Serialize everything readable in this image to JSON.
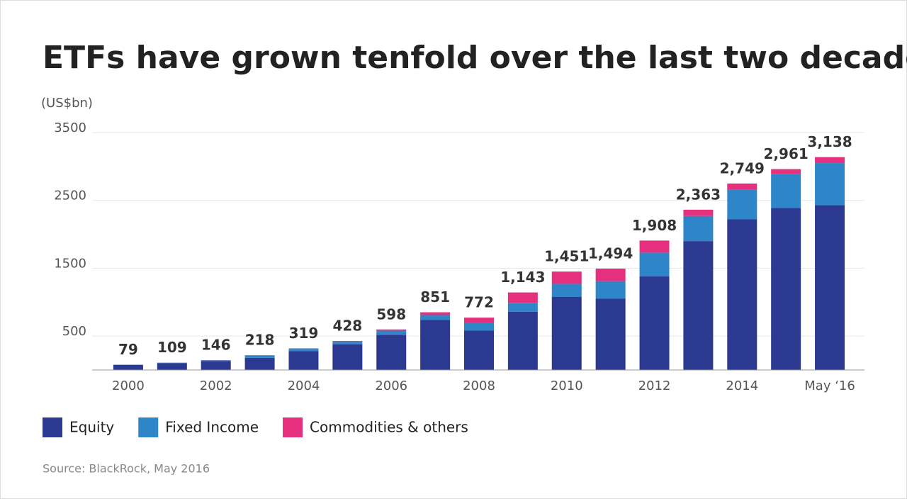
{
  "chart_data": {
    "type": "stacked_bar",
    "title": "ETFs have grown tenfold over the last two decades",
    "y_label": "(US$bn)",
    "source": "Source: BlackRock, May 2016",
    "categories": [
      "2000",
      null,
      "2002",
      null,
      "2004",
      null,
      "2006",
      null,
      "2008",
      null,
      "2010",
      null,
      "2012",
      null,
      "2014",
      null,
      "May ‘16"
    ],
    "series": [
      {
        "name": "Equity",
        "color": "#2b3990",
        "values": [
          74,
          102,
          132,
          180,
          280,
          380,
          520,
          740,
          580,
          860,
          1080,
          1050,
          1380,
          1900,
          2220,
          2390,
          2430
        ]
      },
      {
        "name": "Fixed Income",
        "color": "#2e86c9",
        "values": [
          4,
          5,
          12,
          33,
          32,
          36,
          60,
          70,
          110,
          130,
          190,
          260,
          350,
          370,
          440,
          500,
          620
        ]
      },
      {
        "name": "Commodities & others",
        "color": "#e5307e",
        "values": [
          1,
          2,
          2,
          5,
          7,
          12,
          18,
          41,
          82,
          153,
          181,
          184,
          178,
          93,
          89,
          71,
          88
        ]
      }
    ],
    "totals": [
      79,
      109,
      146,
      218,
      319,
      428,
      598,
      851,
      772,
      1143,
      1451,
      1494,
      1908,
      2363,
      2749,
      2961,
      3138
    ],
    "total_labels": [
      "79",
      "109",
      "146",
      "218",
      "319",
      "428",
      "598",
      "851",
      "772",
      "1,143",
      "1,451",
      "1,494",
      "1,908",
      "2,363",
      "2,749",
      "2,961",
      "3,138"
    ],
    "ylim": [
      0,
      3500
    ],
    "yticks": [
      500,
      1500,
      2500,
      3500
    ],
    "grid": true
  }
}
